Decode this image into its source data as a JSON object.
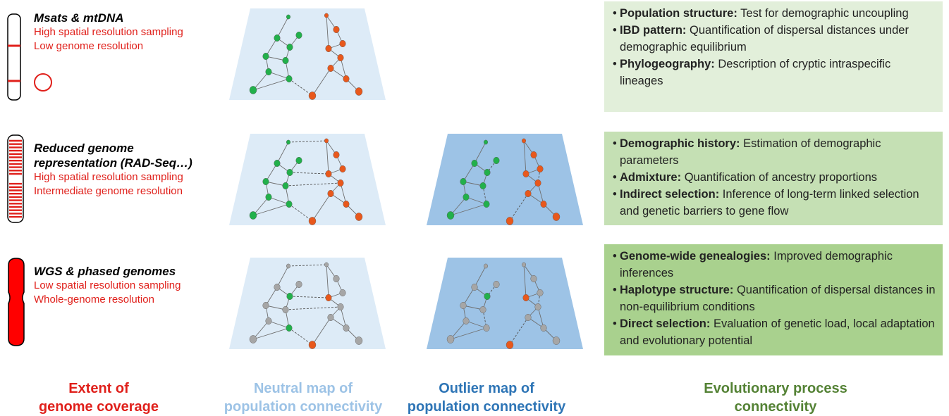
{
  "rows": [
    {
      "title_lines": [
        "Msats & mtDNA"
      ],
      "sub_lines": [
        "High spatial resolution sampling",
        "Low genome resolution"
      ]
    },
    {
      "title_lines": [
        "Reduced genome",
        "representation (RAD-Seq…)"
      ],
      "sub_lines": [
        "High spatial resolution sampling",
        "Intermediate genome resolution"
      ]
    },
    {
      "title_lines": [
        "WGS & phased genomes"
      ],
      "sub_lines": [
        "Low spatial resolution sampling",
        "Whole-genome resolution"
      ]
    }
  ],
  "panels": [
    {
      "color": "#e2efda",
      "items": [
        {
          "term": "Population structure:",
          "desc": "Test for demographic uncoupling"
        },
        {
          "term": "IBD pattern:",
          "desc": "Quantification of dispersal distances under demographic equilibrium"
        },
        {
          "term": "Phylogeography:",
          "desc": "Description of cryptic intraspecific lineages"
        }
      ]
    },
    {
      "color": "#c5e0b4",
      "items": [
        {
          "term": "Demographic history:",
          "desc": "Estimation of demographic parameters"
        },
        {
          "term": "Admixture:",
          "desc": "Quantification of ancestry proportions"
        },
        {
          "term": "Indirect selection:",
          "desc": "Inference of long-term linked selection and genetic barriers to gene flow"
        }
      ]
    },
    {
      "color": "#a9d18e",
      "items": [
        {
          "term": "Genome-wide genealogies:",
          "desc": "Improved demographic inferences"
        },
        {
          "term": "Haplotype structure:",
          "desc": "Quantification of dispersal distances in non-equilibrium conditions"
        },
        {
          "term": "Direct selection:",
          "desc": "Evaluation of genetic load, local adaptation and evolutionary potential"
        }
      ]
    }
  ],
  "footers": [
    {
      "lines": [
        "Extent of",
        "genome coverage"
      ],
      "color": "#e0201b"
    },
    {
      "lines": [
        "Neutral map of",
        "population connectivity"
      ],
      "color": "#9dc3e6"
    },
    {
      "lines": [
        "Outlier map of",
        "population connectivity"
      ],
      "color": "#2e75b6"
    },
    {
      "lines": [
        "Evolutionary process",
        "connectivity"
      ],
      "color": "#548235"
    }
  ],
  "colors": {
    "accent_red": "#e0201b",
    "node_green": "#22b04b",
    "node_orange": "#e8581c",
    "node_grey": "#a6a6a6",
    "neutral_map_fill": "#ddebf7",
    "outlier_map_fill": "#9dc3e6"
  }
}
